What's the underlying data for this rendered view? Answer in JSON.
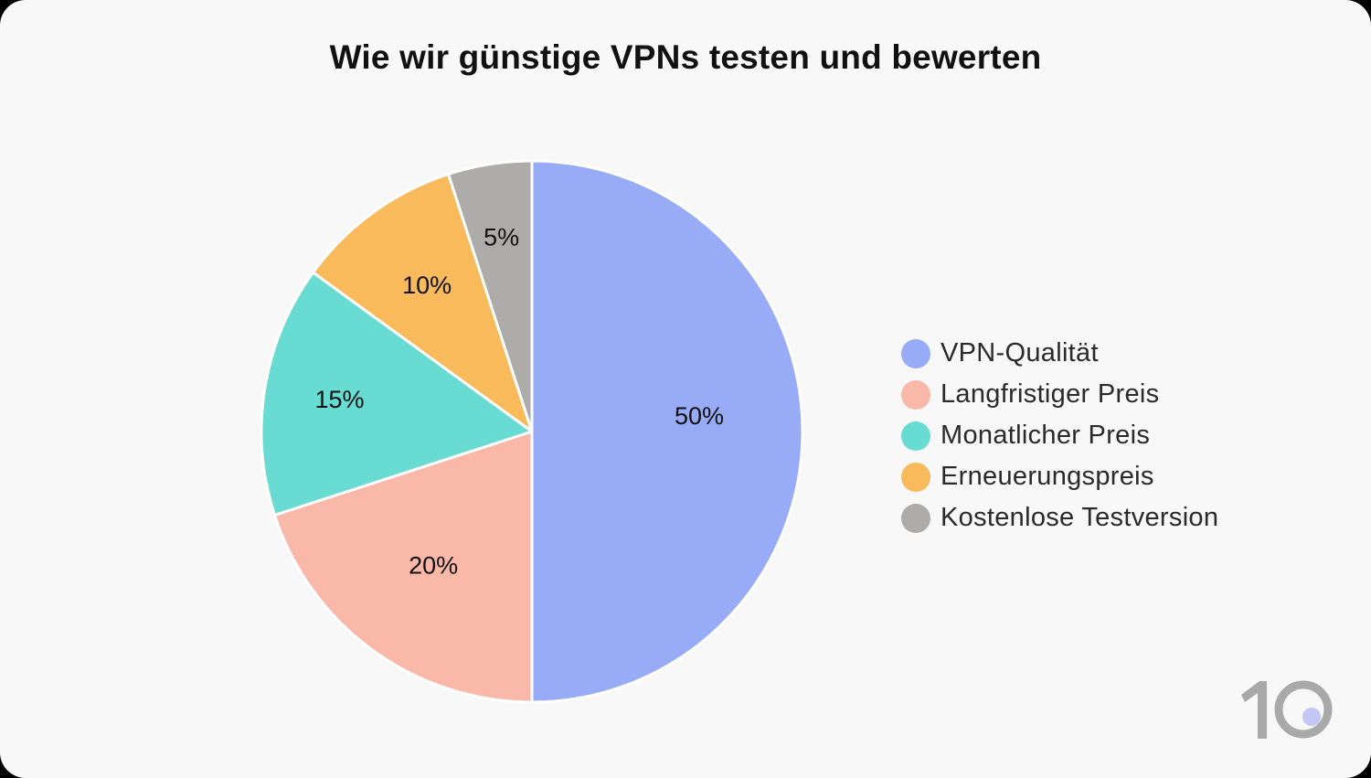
{
  "title": "Wie wir günstige VPNs testen und bewerten",
  "chart_data": {
    "type": "pie",
    "title": "Wie wir günstige VPNs testen und bewerten",
    "categories": [
      "VPN-Qualität",
      "Langfristiger Preis",
      "Monatlicher Preis",
      "Erneuerungspreis",
      "Kostenlose Testversion"
    ],
    "values": [
      50,
      20,
      15,
      10,
      5
    ],
    "labels": [
      "50%",
      "20%",
      "15%",
      "10%",
      "5%"
    ],
    "colors": [
      "#98abf7",
      "#f9b8a8",
      "#68dbd2",
      "#f9ba5c",
      "#aeabab"
    ],
    "start_angle": "12 o'clock",
    "direction": "clockwise",
    "legend_position": "right"
  },
  "legend": {
    "items": [
      {
        "label": "VPN-Qualität",
        "color": "#98abf7"
      },
      {
        "label": "Langfristiger Preis",
        "color": "#f9b8a8"
      },
      {
        "label": "Monatlicher Preis",
        "color": "#68dbd2"
      },
      {
        "label": "Erneuerungspreis",
        "color": "#f9ba5c"
      },
      {
        "label": "Kostenlose Testversion",
        "color": "#aeabab"
      }
    ]
  },
  "logo": {
    "text": "10",
    "dot_color": "#c4c6f5",
    "digit_color": "#a9a9a9"
  }
}
